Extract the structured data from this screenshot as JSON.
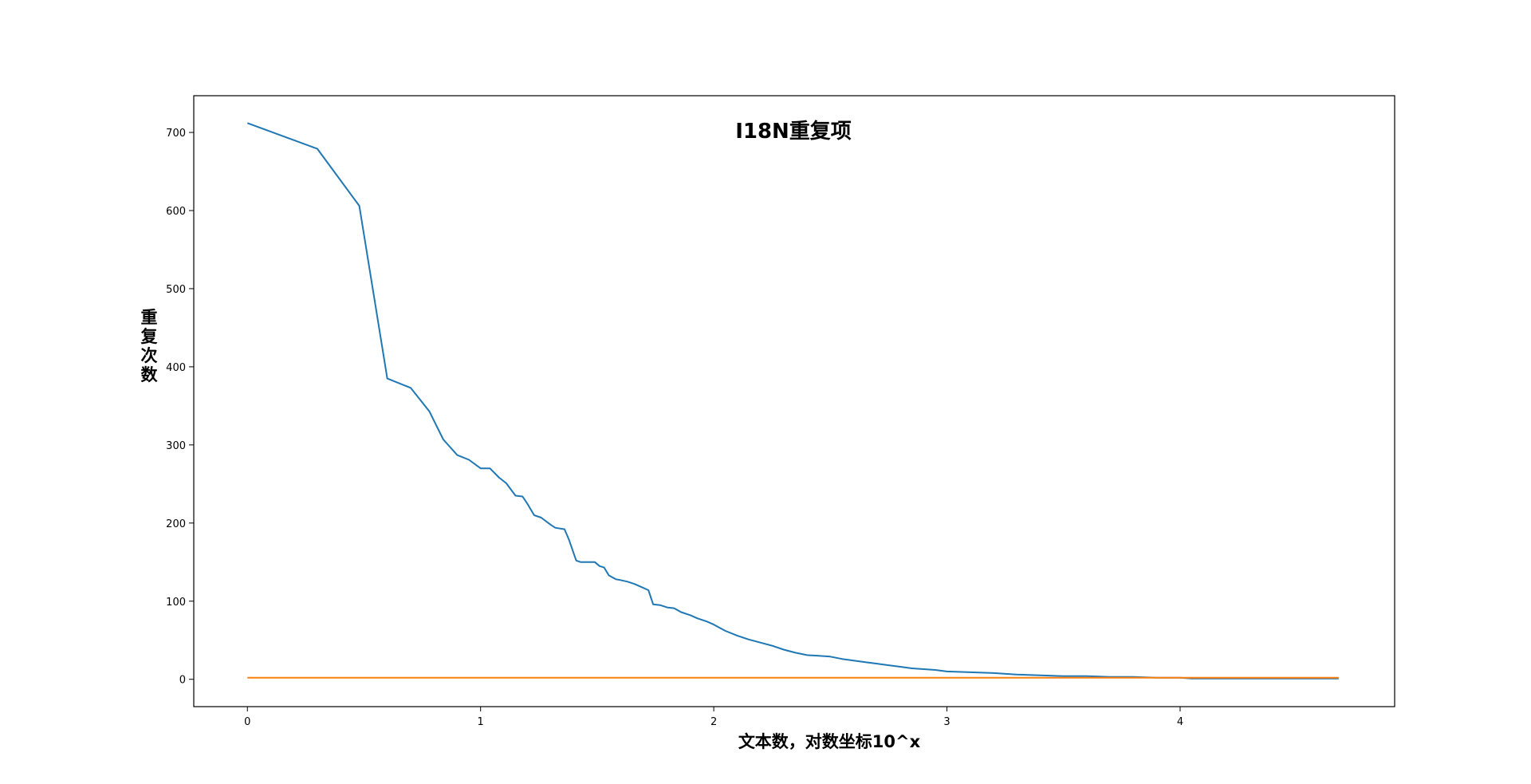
{
  "chart_data": {
    "type": "line",
    "title": "I18N重复项",
    "xlabel": "文本数，对数坐标10^x",
    "ylabel": "重复次数",
    "xlim": [
      -0.23,
      4.92
    ],
    "ylim": [
      -35,
      747
    ],
    "xticks": [
      0,
      1,
      2,
      3,
      4
    ],
    "yticks": [
      0,
      100,
      200,
      300,
      400,
      500,
      600,
      700
    ],
    "grid": false,
    "series": [
      {
        "color": "#1f77b4",
        "x": [
          0,
          0.3,
          0.48,
          0.6,
          0.7,
          0.78,
          0.84,
          0.9,
          0.95,
          1.0,
          1.04,
          1.08,
          1.11,
          1.15,
          1.18,
          1.2,
          1.23,
          1.26,
          1.3,
          1.32,
          1.36,
          1.38,
          1.41,
          1.43,
          1.46,
          1.49,
          1.51,
          1.53,
          1.55,
          1.58,
          1.6,
          1.63,
          1.66,
          1.69,
          1.72,
          1.74,
          1.77,
          1.8,
          1.83,
          1.86,
          1.9,
          1.93,
          1.97,
          2.0,
          2.05,
          2.1,
          2.15,
          2.2,
          2.25,
          2.3,
          2.35,
          2.4,
          2.45,
          2.5,
          2.55,
          2.6,
          2.65,
          2.7,
          2.75,
          2.8,
          2.85,
          2.9,
          2.95,
          3.0,
          3.1,
          3.2,
          3.3,
          3.4,
          3.5,
          3.6,
          3.7,
          3.8,
          3.9,
          4.0,
          4.05,
          4.2,
          4.4,
          4.68
        ],
        "y": [
          712,
          679,
          606,
          385,
          373,
          343,
          307,
          287,
          281,
          270,
          270,
          258,
          251,
          235,
          234,
          225,
          210,
          207,
          198,
          194,
          192,
          178,
          152,
          150,
          150,
          150,
          145,
          143,
          133,
          128,
          127,
          125,
          122,
          118,
          114,
          96,
          95,
          92,
          91,
          86,
          82,
          78,
          74,
          70,
          62,
          56,
          51,
          47,
          43,
          38,
          34,
          31,
          30,
          29,
          26,
          24,
          22,
          20,
          18,
          16,
          14,
          13,
          12,
          10,
          9,
          8,
          6,
          5,
          4,
          4,
          3,
          3,
          2,
          2,
          1,
          1,
          1,
          1
        ]
      },
      {
        "color": "#ff7f0e",
        "x": [
          0,
          4.68
        ],
        "y": [
          2,
          2
        ]
      }
    ]
  }
}
